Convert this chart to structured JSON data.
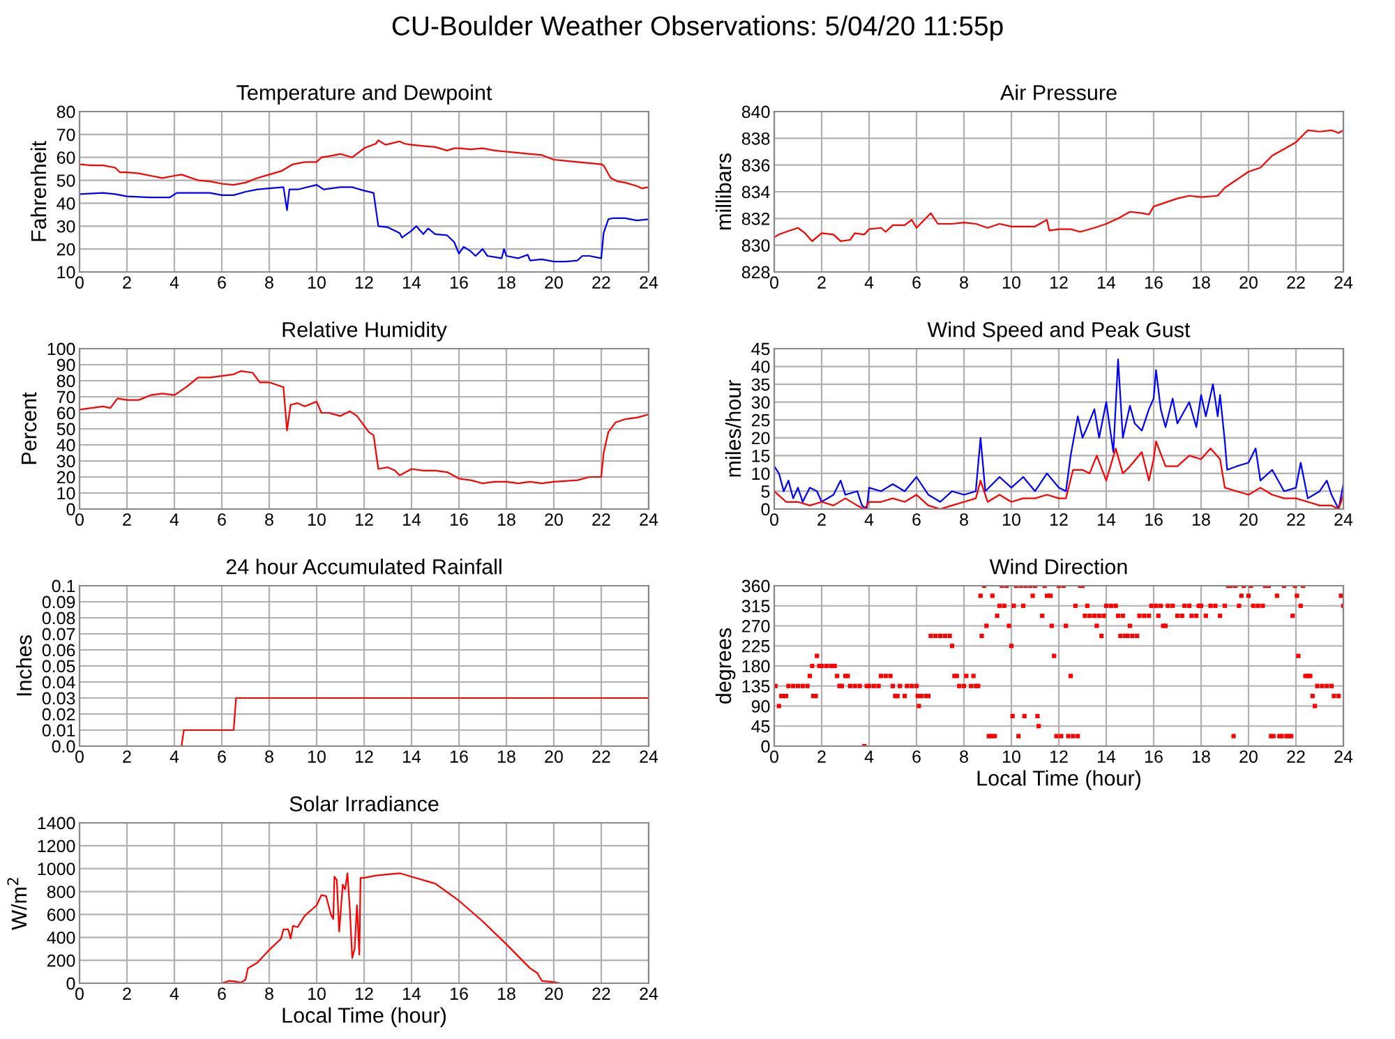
{
  "chart_data": [
    {
      "type": "line",
      "title": "Temperature and Dewpoint",
      "ylabel": "Fahrenheit",
      "annotations": [
        "CU-Boulder Weather Observations: 5/04/20 11:55p"
      ],
      "xlim": [
        0,
        24
      ],
      "xticks": [
        0,
        2,
        4,
        6,
        8,
        10,
        12,
        14,
        16,
        18,
        20,
        22,
        24
      ],
      "ylim": [
        10,
        80
      ],
      "yticks": [
        10,
        20,
        30,
        40,
        50,
        60,
        70,
        80
      ],
      "grid": true,
      "series": [
        {
          "color": "#ff0000",
          "x": [
            0,
            0.5,
            1,
            1.5,
            1.7,
            2,
            2.5,
            3,
            3.5,
            4,
            4.3,
            5,
            5.5,
            6,
            6.5,
            7,
            7.5,
            8,
            8.5,
            9,
            9.5,
            10,
            10.2,
            10.5,
            11,
            11.5,
            12,
            12.5,
            12.6,
            12.9,
            13.3,
            13.5,
            13.7,
            14,
            14.5,
            15,
            15.5,
            15.8,
            16,
            16.5,
            17,
            17.5,
            18,
            18.5,
            19,
            19.5,
            20,
            20.5,
            21,
            21.5,
            22,
            22.1,
            22.4,
            22.7,
            23,
            23.5,
            23.7,
            24
          ],
          "values": [
            57,
            56.5,
            56.5,
            55.5,
            53.5,
            53.5,
            53,
            52,
            51,
            52,
            52.5,
            50,
            49.5,
            48.5,
            48,
            49,
            51,
            52.5,
            54,
            57,
            58,
            58,
            60,
            60.5,
            61.5,
            60,
            64,
            66,
            67.5,
            65.5,
            66.5,
            67,
            66,
            65.5,
            65,
            64.5,
            63,
            64,
            64,
            63.5,
            64,
            63,
            62.5,
            62,
            61.5,
            61,
            59,
            58.5,
            58,
            57.5,
            57,
            56.5,
            51,
            49.5,
            49,
            47.5,
            46.5,
            47
          ]
        },
        {
          "color": "#0000ff",
          "x": [
            0,
            1,
            1.5,
            2,
            3,
            3.8,
            4.1,
            5,
            5.5,
            6,
            6.5,
            7,
            7.5,
            8,
            8.6,
            8.75,
            8.85,
            9.2,
            10,
            10.3,
            11,
            11.5,
            12,
            12.4,
            12.6,
            13,
            13.5,
            13.6,
            14,
            14.2,
            14.5,
            14.7,
            15,
            15.5,
            15.8,
            16,
            16.2,
            16.5,
            16.7,
            17,
            17.2,
            17.5,
            17.8,
            17.9,
            18,
            18.5,
            18.9,
            19,
            19.5,
            20,
            20.5,
            21,
            21.2,
            21.5,
            22,
            22.1,
            22.3,
            22.5,
            23,
            23.5,
            24
          ],
          "values": [
            44,
            44.5,
            44,
            43,
            42.5,
            42.5,
            44.5,
            44.5,
            44.5,
            43.5,
            43.5,
            45,
            46,
            46.5,
            47,
            37,
            46,
            46,
            48,
            46,
            47,
            47,
            45.5,
            44.5,
            30,
            29.5,
            27,
            25,
            28,
            30,
            26.5,
            29,
            26.5,
            26,
            23,
            18,
            21,
            19,
            17,
            20,
            17,
            16.5,
            16,
            20,
            17,
            16,
            17.5,
            15,
            15.5,
            14.5,
            14.5,
            15,
            17,
            17,
            16,
            27,
            33,
            33.5,
            33.5,
            32.5,
            33
          ]
        }
      ]
    },
    {
      "type": "line",
      "title": "Air Pressure",
      "ylabel": "millibars",
      "xlim": [
        0,
        24
      ],
      "xticks": [
        0,
        2,
        4,
        6,
        8,
        10,
        12,
        14,
        16,
        18,
        20,
        22,
        24
      ],
      "ylim": [
        828,
        840
      ],
      "yticks": [
        828,
        830,
        832,
        834,
        836,
        838,
        840
      ],
      "grid": true,
      "series": [
        {
          "color": "#ff0000",
          "x": [
            0,
            0.2,
            0.5,
            1,
            1.3,
            1.6,
            2,
            2.5,
            2.8,
            3.2,
            3.4,
            3.8,
            4,
            4.5,
            4.7,
            5,
            5.5,
            5.8,
            6,
            6.6,
            6.9,
            7.5,
            8,
            8.5,
            9,
            9.5,
            10,
            11,
            11.5,
            11.6,
            12,
            12.5,
            12.9,
            13.5,
            14,
            14.5,
            15,
            15.5,
            15.8,
            16,
            16.5,
            17,
            17.5,
            18,
            18.7,
            19,
            19.5,
            20,
            20.5,
            21,
            21.5,
            22,
            22.5,
            23,
            23.5,
            23.8,
            24
          ],
          "values": [
            830.6,
            830.8,
            831,
            831.3,
            830.9,
            830.3,
            830.9,
            830.8,
            830.3,
            830.4,
            830.9,
            830.8,
            831.2,
            831.3,
            831,
            831.5,
            831.5,
            831.9,
            831.3,
            832.4,
            831.6,
            831.6,
            831.7,
            831.6,
            831.3,
            831.6,
            831.4,
            831.4,
            831.9,
            831.1,
            831.2,
            831.2,
            831.0,
            831.3,
            831.6,
            832,
            832.5,
            832.4,
            832.3,
            832.9,
            833.2,
            833.5,
            833.7,
            833.6,
            833.7,
            834.3,
            834.9,
            835.5,
            835.8,
            836.7,
            837.2,
            837.7,
            838.6,
            838.5,
            838.6,
            838.4,
            838.6
          ]
        }
      ]
    },
    {
      "type": "line",
      "title": "Relative Humidity",
      "ylabel": "Percent",
      "xlim": [
        0,
        24
      ],
      "xticks": [
        0,
        2,
        4,
        6,
        8,
        10,
        12,
        14,
        16,
        18,
        20,
        22,
        24
      ],
      "ylim": [
        0,
        100
      ],
      "yticks": [
        0,
        10,
        20,
        30,
        40,
        50,
        60,
        70,
        80,
        90,
        100
      ],
      "grid": true,
      "series": [
        {
          "color": "#ff0000",
          "x": [
            0,
            0.5,
            1,
            1.3,
            1.6,
            2,
            2.5,
            3,
            3.5,
            4,
            4.5,
            5,
            5.5,
            6,
            6.5,
            6.8,
            7.3,
            7.6,
            8,
            8.6,
            8.75,
            8.9,
            9.2,
            9.5,
            10,
            10.2,
            10.5,
            11,
            11.4,
            11.7,
            12,
            12.2,
            12.4,
            12.6,
            13,
            13.3,
            13.5,
            14,
            14.5,
            15,
            15.5,
            16,
            16.5,
            17,
            17.5,
            18,
            18.5,
            19,
            19.5,
            20,
            21,
            21.5,
            22,
            22.1,
            22.3,
            22.6,
            23,
            23.5,
            24
          ],
          "values": [
            62,
            63,
            64,
            63,
            69,
            68,
            68,
            71,
            72,
            71,
            76,
            82,
            82,
            83,
            84,
            86,
            85,
            79,
            79,
            76,
            49,
            65,
            66,
            64,
            67,
            60,
            60,
            58,
            61,
            58,
            52,
            48,
            46,
            25,
            26,
            24,
            21,
            25,
            24,
            24,
            23,
            19,
            18,
            16,
            17,
            17,
            16,
            17,
            16,
            17,
            18,
            20,
            20,
            35,
            48,
            54,
            56,
            57,
            59
          ]
        }
      ]
    },
    {
      "type": "line",
      "title": "Wind Speed and Peak Gust",
      "ylabel": "miles/hour",
      "xlim": [
        0,
        24
      ],
      "xticks": [
        0,
        2,
        4,
        6,
        8,
        10,
        12,
        14,
        16,
        18,
        20,
        22,
        24
      ],
      "ylim": [
        0,
        45
      ],
      "yticks": [
        0,
        5,
        10,
        15,
        20,
        25,
        30,
        35,
        40,
        45
      ],
      "grid": true,
      "series": [
        {
          "color": "#0000ff",
          "x": [
            0,
            0.2,
            0.4,
            0.6,
            0.8,
            1,
            1.2,
            1.5,
            1.8,
            2,
            2.5,
            2.8,
            3,
            3.5,
            3.7,
            3.9,
            4,
            4.5,
            5,
            5.5,
            6,
            6.5,
            7,
            7.5,
            8,
            8.5,
            8.7,
            8.9,
            9.5,
            10,
            10.5,
            11,
            11.5,
            12,
            12.3,
            12.5,
            12.8,
            13,
            13.2,
            13.5,
            13.7,
            14,
            14.3,
            14.5,
            14.7,
            15,
            15.2,
            15.5,
            15.8,
            16,
            16.1,
            16.3,
            16.5,
            16.8,
            17,
            17.5,
            17.8,
            18,
            18.2,
            18.5,
            18.7,
            18.8,
            19,
            19.1,
            19.5,
            20,
            20.3,
            20.5,
            21,
            21.5,
            22,
            22.2,
            22.5,
            23,
            23.3,
            23.5,
            23.8,
            24
          ],
          "values": [
            12,
            10,
            5,
            8,
            3,
            6,
            2,
            6,
            5,
            2,
            4,
            8,
            4,
            5,
            1,
            0,
            6,
            5,
            7,
            5,
            9,
            4,
            2,
            5,
            4,
            5,
            20,
            5,
            9,
            6,
            9,
            5,
            10,
            6,
            5,
            15,
            26,
            20,
            23,
            28,
            20,
            30,
            16,
            42,
            20,
            29,
            24,
            22,
            28,
            31,
            39,
            28,
            23,
            31,
            24,
            30,
            23,
            32,
            26,
            35,
            26,
            32,
            19,
            11,
            12,
            13,
            17,
            8,
            11,
            5,
            6,
            13,
            3,
            5,
            8,
            4,
            0,
            7
          ]
        },
        {
          "color": "#ff0000",
          "x": [
            0,
            0.5,
            1,
            1.5,
            2,
            2.5,
            3,
            3.5,
            3.8,
            4,
            4.5,
            5,
            5.5,
            6,
            6.5,
            7,
            7.5,
            8,
            8.5,
            8.7,
            9,
            9.5,
            10,
            10.5,
            11,
            11.5,
            12,
            12.3,
            12.6,
            13,
            13.3,
            13.6,
            14,
            14.4,
            14.7,
            15,
            15.5,
            15.8,
            16,
            16.1,
            16.5,
            17,
            17.5,
            18,
            18.4,
            18.8,
            19,
            19.5,
            20,
            20.5,
            21,
            21.5,
            22,
            22.5,
            23,
            23.5,
            23.8,
            24
          ],
          "values": [
            5,
            2,
            2,
            1,
            2,
            1,
            3,
            1,
            0,
            2,
            2,
            3,
            2,
            4,
            1,
            0,
            1,
            2,
            3,
            8,
            2,
            4,
            2,
            3,
            3,
            4,
            3,
            3,
            11,
            11,
            10,
            15,
            8,
            17,
            10,
            12,
            16,
            8,
            14,
            19,
            12,
            12,
            15,
            14,
            17,
            14,
            6,
            5,
            4,
            6,
            4,
            3,
            3,
            2,
            1,
            1,
            0,
            4
          ]
        }
      ]
    },
    {
      "type": "line",
      "title": "24 hour Accumulated Rainfall",
      "ylabel": "Inches",
      "xlim": [
        0,
        24
      ],
      "xticks": [
        0,
        2,
        4,
        6,
        8,
        10,
        12,
        14,
        16,
        18,
        20,
        22,
        24
      ],
      "ylim": [
        0,
        0.1
      ],
      "yticks": [
        {
          "value": 0,
          "label": "0.0"
        },
        0.01,
        0.02,
        0.03,
        0.04,
        0.05,
        0.06,
        0.07,
        0.08,
        0.09,
        0.1
      ],
      "grid": true,
      "series": [
        {
          "color": "#ff0000",
          "x": [
            0,
            4.3,
            4.4,
            6.5,
            6.6,
            24
          ],
          "values": [
            0,
            0,
            0.01,
            0.01,
            0.03,
            0.03
          ]
        }
      ]
    },
    {
      "type": "scatter",
      "title": "Wind Direction",
      "ylabel": "degrees",
      "xlabel": "Local Time (hour)",
      "xlim": [
        0,
        24
      ],
      "xticks": [
        0,
        2,
        4,
        6,
        8,
        10,
        12,
        14,
        16,
        18,
        20,
        22,
        24
      ],
      "ylim": [
        0,
        360
      ],
      "yticks": [
        0,
        45,
        90,
        135,
        180,
        225,
        270,
        315,
        360
      ],
      "grid": true,
      "marker": "square",
      "series": [
        {
          "color": "#ff0000",
          "x": [
            0.05,
            0.2,
            0.3,
            0.4,
            0.5,
            0.6,
            0.8,
            1,
            1.2,
            1.4,
            1.5,
            1.6,
            1.65,
            1.75,
            1.8,
            1.9,
            2,
            2.2,
            2.4,
            2.55,
            2.65,
            2.75,
            2.85,
            3,
            3.1,
            3.2,
            3.4,
            3.6,
            3.8,
            3.9,
            4,
            4.2,
            4.4,
            4.5,
            4.7,
            4.9,
            5,
            5.1,
            5.2,
            5.3,
            5.5,
            5.6,
            5.8,
            6,
            6.05,
            6.1,
            6.2,
            6.4,
            6.5,
            6.6,
            6.8,
            7,
            7.2,
            7.4,
            7.5,
            7.6,
            7.7,
            7.8,
            8,
            8.1,
            8.3,
            8.4,
            8.5,
            8.6,
            8.7,
            8.75,
            8.85,
            8.95,
            9.05,
            9.15,
            9.2,
            9.3,
            9.4,
            9.5,
            9.6,
            9.7,
            9.8,
            9.9,
            10,
            10.05,
            10.1,
            10.2,
            10.3,
            10.4,
            10.5,
            10.55,
            10.6,
            10.8,
            10.9,
            11,
            11.1,
            11.15,
            11.3,
            11.4,
            11.5,
            11.65,
            11.7,
            11.8,
            11.9,
            12,
            12.1,
            12.2,
            12.3,
            12.4,
            12.5,
            12.6,
            12.7,
            12.8,
            12.9,
            13,
            13.1,
            13.2,
            13.3,
            13.5,
            13.6,
            13.7,
            13.8,
            13.9,
            14,
            14.2,
            14.4,
            14.5,
            14.6,
            14.7,
            14.8,
            14.9,
            15,
            15.1,
            15.3,
            15.4,
            15.6,
            15.8,
            15.9,
            16.1,
            16.2,
            16.3,
            16.4,
            16.5,
            16.6,
            16.8,
            17,
            17.2,
            17.3,
            17.5,
            17.6,
            17.8,
            17.9,
            18,
            18.2,
            18.4,
            18.6,
            18.8,
            19,
            19.15,
            19.25,
            19.37,
            19.45,
            19.6,
            19.7,
            19.8,
            20,
            20.1,
            20.2,
            20.4,
            20.6,
            20.7,
            20.85,
            20.95,
            21.05,
            21.2,
            21.3,
            21.4,
            21.5,
            21.6,
            21.7,
            21.8,
            21.86,
            21.96,
            22.04,
            22.1,
            22.2,
            22.3,
            22.4,
            22.5,
            22.6,
            22.7,
            22.8,
            22.9,
            23.1,
            23.3,
            23.5,
            23.6,
            23.8,
            23.9,
            24
          ],
          "values": [
            135,
            90,
            112.5,
            112.5,
            112.5,
            135,
            135,
            135,
            135,
            135,
            157.5,
            180,
            112.5,
            112.5,
            202.5,
            180,
            180,
            180,
            180,
            180,
            157.5,
            135,
            135,
            157.5,
            157.5,
            135,
            135,
            135,
            0,
            135,
            135,
            135,
            135,
            157.5,
            157.5,
            157.5,
            135,
            112.5,
            112.5,
            135,
            112.5,
            135,
            135,
            135,
            112.5,
            90,
            112.5,
            112.5,
            112.5,
            247.5,
            247.5,
            247.5,
            247.5,
            247.5,
            225,
            157.5,
            157.5,
            135,
            135,
            157.5,
            135,
            157.5,
            135,
            135,
            337.5,
            247.5,
            360,
            270,
            22.5,
            22.5,
            337.5,
            22.5,
            292.5,
            315,
            360,
            315,
            360,
            270,
            225,
            67.5,
            315,
            360,
            22.5,
            360,
            315,
            67.5,
            360,
            360,
            337.5,
            360,
            67.5,
            45,
            292.5,
            360,
            337.5,
            337.5,
            270,
            202.5,
            22.5,
            360,
            22.5,
            360,
            270,
            22.5,
            157.5,
            22.5,
            315,
            22.5,
            360,
            360,
            292.5,
            315,
            292.5,
            292.5,
            270,
            292.5,
            247.5,
            292.5,
            315,
            315,
            315,
            292.5,
            247.5,
            292.5,
            247.5,
            247.5,
            270,
            247.5,
            247.5,
            292.5,
            292.5,
            292.5,
            315,
            315,
            292.5,
            315,
            270,
            270,
            315,
            315,
            292.5,
            292.5,
            315,
            315,
            292.5,
            292.5,
            315,
            315,
            292.5,
            315,
            315,
            292.5,
            315,
            360,
            360,
            22.5,
            360,
            315,
            337.5,
            360,
            337.5,
            360,
            315,
            315,
            315,
            360,
            360,
            22.5,
            22.5,
            337.5,
            22.5,
            22.5,
            360,
            22.5,
            22.5,
            22.5,
            292.5,
            360,
            337.5,
            202.5,
            315,
            360,
            157.5,
            157.5,
            157.5,
            112.5,
            90,
            135,
            135,
            135,
            135,
            112.5,
            112.5,
            337.5,
            315
          ]
        }
      ]
    },
    {
      "type": "line",
      "title": "Solar Irradiance",
      "ylabel": "W/m$^{2}$",
      "xlabel": "Local Time (hour)",
      "xlim": [
        0,
        24
      ],
      "xticks": [
        0,
        2,
        4,
        6,
        8,
        10,
        12,
        14,
        16,
        18,
        20,
        22,
        24
      ],
      "ylim": [
        0,
        1400
      ],
      "yticks": [
        0,
        200,
        400,
        600,
        800,
        1000,
        1200,
        1400
      ],
      "grid": true,
      "series": [
        {
          "color": "#ff0000",
          "x": [
            0,
            6,
            6.3,
            6.6,
            6.8,
            7,
            7.1,
            7.5,
            8,
            8.5,
            8.6,
            8.8,
            8.9,
            9,
            9.2,
            9.5,
            10,
            10.2,
            10.4,
            10.6,
            10.7,
            10.75,
            10.85,
            10.95,
            11.1,
            11.2,
            11.3,
            11.4,
            11.5,
            11.6,
            11.7,
            11.8,
            11.85,
            12,
            12.5,
            13,
            13.5,
            14,
            15,
            16,
            17,
            18,
            19,
            19.3,
            19.5,
            20,
            20.3,
            24
          ],
          "values": [
            0,
            0,
            20,
            15,
            5,
            30,
            130,
            180,
            290,
            390,
            470,
            470,
            390,
            500,
            490,
            590,
            680,
            770,
            760,
            600,
            560,
            930,
            900,
            450,
            860,
            820,
            960,
            640,
            220,
            300,
            680,
            250,
            920,
            920,
            940,
            950,
            960,
            930,
            870,
            720,
            540,
            340,
            130,
            90,
            20,
            10,
            0,
            0
          ]
        }
      ]
    }
  ]
}
